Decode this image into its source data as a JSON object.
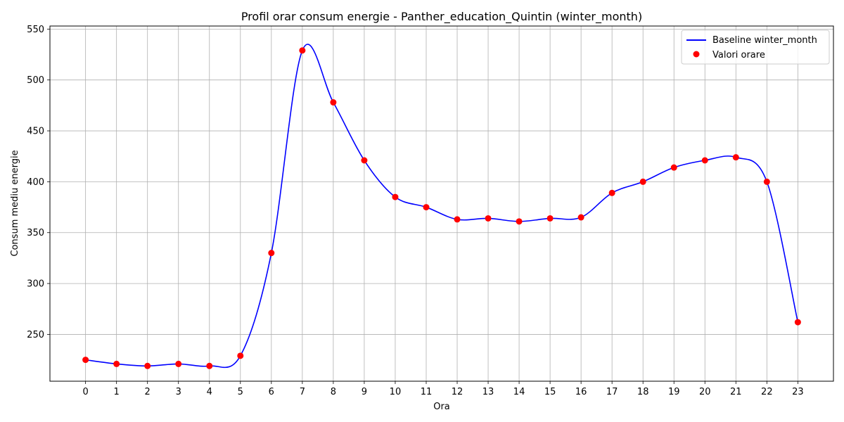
{
  "chart_data": {
    "type": "line",
    "title": "Profil orar consum energie - Panther_education_Quintin (winter_month)",
    "xlabel": "Ora",
    "ylabel": "Consum mediu energie",
    "x": [
      0,
      1,
      2,
      3,
      4,
      5,
      6,
      7,
      8,
      9,
      10,
      11,
      12,
      13,
      14,
      15,
      16,
      17,
      18,
      19,
      20,
      21,
      22,
      23
    ],
    "xticks": [
      0,
      1,
      2,
      3,
      4,
      5,
      6,
      7,
      8,
      9,
      10,
      11,
      12,
      13,
      14,
      15,
      16,
      17,
      18,
      19,
      20,
      21,
      22,
      23
    ],
    "yticks": [
      250,
      300,
      350,
      400,
      450,
      500,
      550
    ],
    "xlim": [
      -1.15,
      24.15
    ],
    "ylim": [
      204,
      553
    ],
    "grid": true,
    "legend_position": "top-right",
    "series": [
      {
        "name": "Baseline winter_month",
        "kind": "smooth-line",
        "color": "#0000ff",
        "values": [
          225,
          221,
          219,
          221,
          219,
          229,
          330,
          529,
          478,
          421,
          385,
          375,
          363,
          364,
          361,
          364,
          365,
          389,
          400,
          414,
          421,
          424,
          400,
          262
        ]
      },
      {
        "name": "Valori orare",
        "kind": "scatter",
        "color": "#ff0000",
        "values": [
          225,
          221,
          219,
          221,
          219,
          229,
          330,
          529,
          478,
          421,
          385,
          375,
          363,
          364,
          361,
          364,
          365,
          389,
          400,
          414,
          421,
          424,
          400,
          262
        ]
      }
    ]
  }
}
